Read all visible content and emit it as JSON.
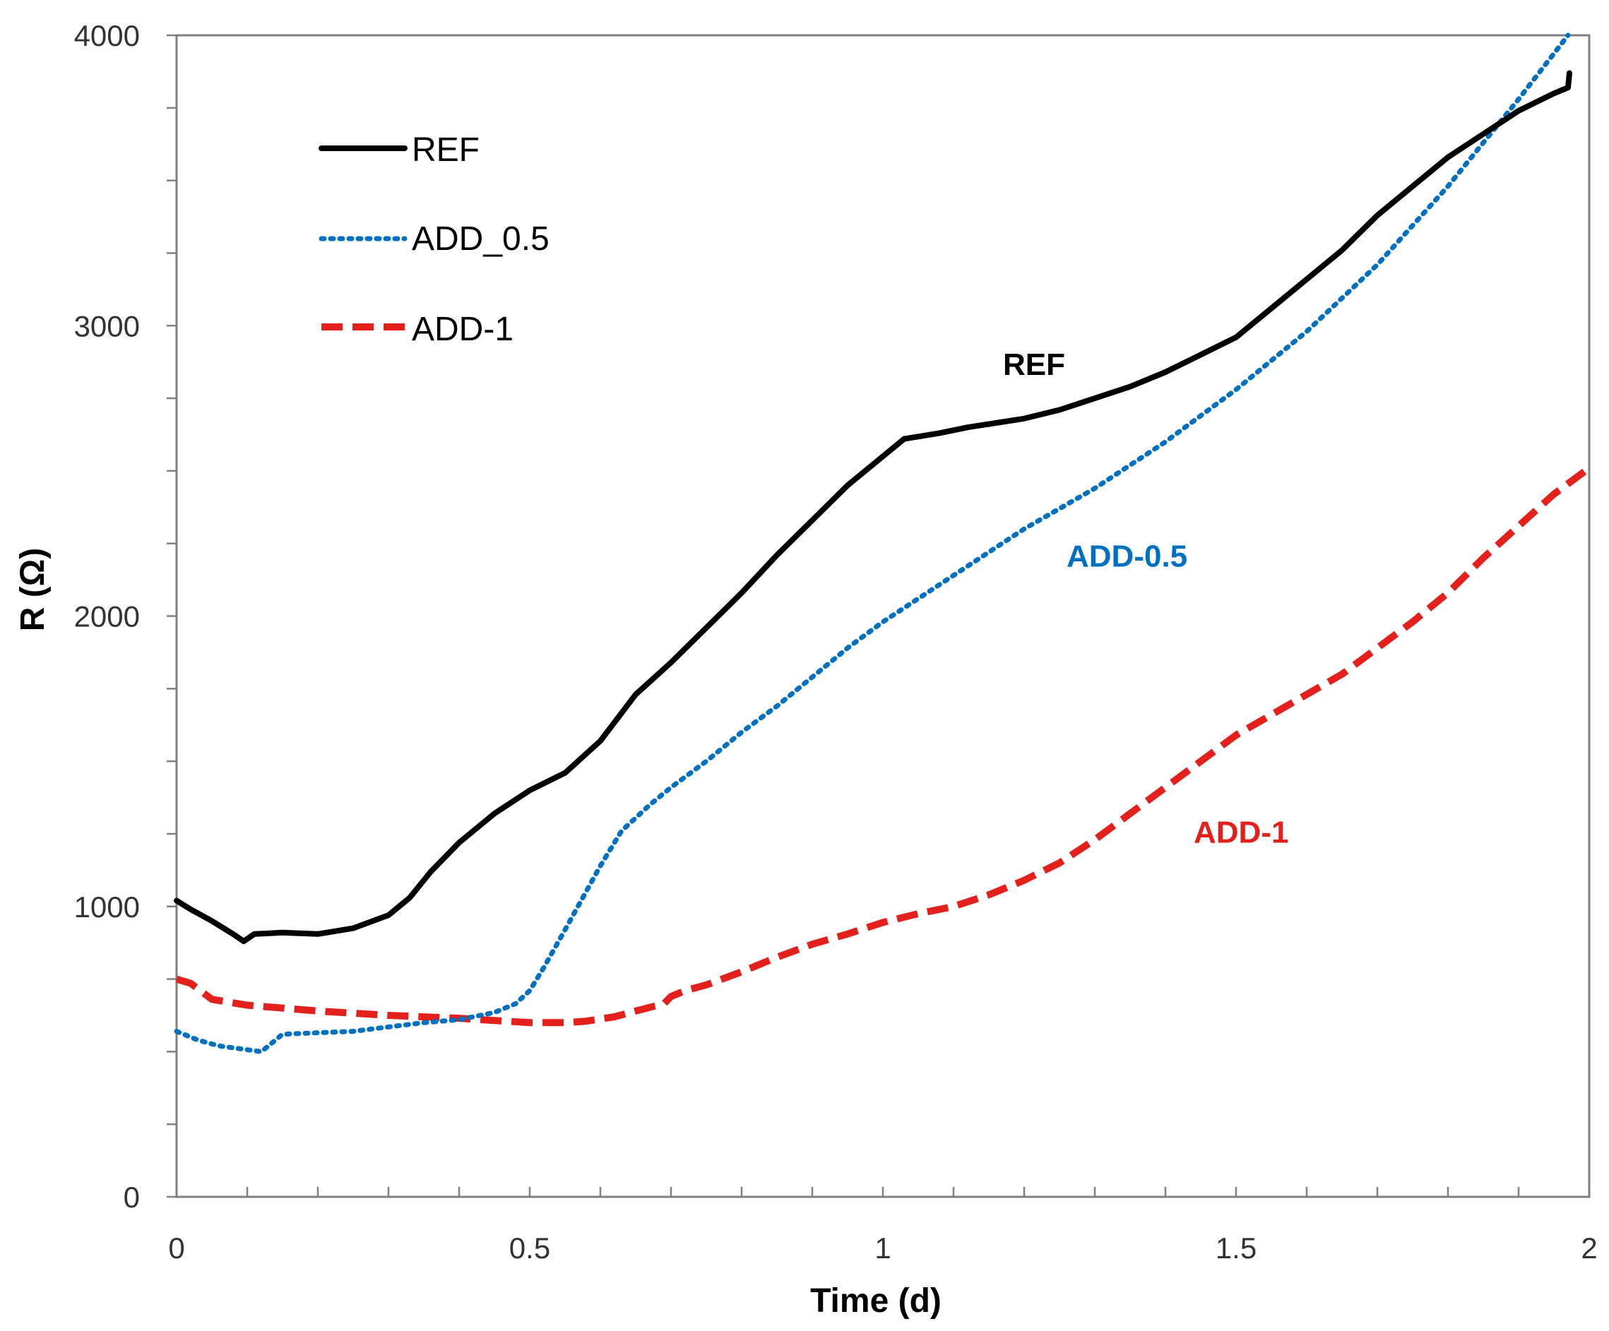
{
  "chart_data": {
    "type": "line",
    "title": "",
    "xlabel": "Time (d)",
    "ylabel": "R (Ω)",
    "xlim": [
      0,
      2
    ],
    "ylim": [
      0,
      4000
    ],
    "x_ticks": [
      {
        "value": 0,
        "label": "0"
      },
      {
        "value": 0.5,
        "label": "0.5"
      },
      {
        "value": 1,
        "label": "1"
      },
      {
        "value": 1.5,
        "label": "1.5"
      },
      {
        "value": 2,
        "label": "2"
      }
    ],
    "x_minor_step": 0.1,
    "y_ticks": [
      {
        "value": 0,
        "label": "0"
      },
      {
        "value": 1000,
        "label": "1000"
      },
      {
        "value": 2000,
        "label": "2000"
      },
      {
        "value": 3000,
        "label": "3000"
      },
      {
        "value": 4000,
        "label": "4000"
      }
    ],
    "y_minor_step": 250,
    "grid": false,
    "legend_position": "top-left",
    "series": [
      {
        "name": "REF",
        "color": "#000000",
        "style": "solid",
        "x": [
          0,
          0.02,
          0.05,
          0.08,
          0.095,
          0.11,
          0.15,
          0.2,
          0.25,
          0.3,
          0.33,
          0.36,
          0.4,
          0.45,
          0.5,
          0.55,
          0.6,
          0.65,
          0.7,
          0.75,
          0.8,
          0.85,
          0.9,
          0.95,
          1.0,
          1.03,
          1.08,
          1.12,
          1.16,
          1.2,
          1.25,
          1.3,
          1.35,
          1.4,
          1.45,
          1.5,
          1.55,
          1.6,
          1.65,
          1.7,
          1.75,
          1.8,
          1.85,
          1.9,
          1.95,
          1.97,
          1.972
        ],
        "values": [
          1020,
          990,
          950,
          905,
          880,
          905,
          910,
          905,
          925,
          970,
          1030,
          1120,
          1220,
          1320,
          1400,
          1460,
          1570,
          1730,
          1840,
          1960,
          2080,
          2210,
          2330,
          2450,
          2550,
          2610,
          2630,
          2650,
          2665,
          2680,
          2710,
          2750,
          2790,
          2840,
          2900,
          2960,
          3060,
          3160,
          3260,
          3380,
          3480,
          3580,
          3660,
          3740,
          3800,
          3820,
          3870
        ]
      },
      {
        "name": "ADD_0.5",
        "annotation": "ADD-0.5",
        "color": "#0070C0",
        "style": "dotted",
        "x": [
          0,
          0.03,
          0.06,
          0.09,
          0.12,
          0.13,
          0.15,
          0.2,
          0.25,
          0.3,
          0.35,
          0.4,
          0.45,
          0.48,
          0.5,
          0.52,
          0.55,
          0.6,
          0.63,
          0.67,
          0.7,
          0.75,
          0.8,
          0.85,
          0.9,
          0.95,
          1.0,
          1.05,
          1.1,
          1.2,
          1.3,
          1.4,
          1.5,
          1.6,
          1.7,
          1.8,
          1.9,
          1.97
        ],
        "values": [
          570,
          540,
          520,
          510,
          500,
          520,
          560,
          565,
          570,
          585,
          600,
          610,
          635,
          665,
          710,
          790,
          920,
          1140,
          1260,
          1350,
          1410,
          1500,
          1600,
          1690,
          1790,
          1890,
          1980,
          2060,
          2140,
          2300,
          2440,
          2600,
          2780,
          2980,
          3210,
          3480,
          3780,
          4000
        ]
      },
      {
        "name": "ADD-1",
        "annotation": "ADD-1",
        "color": "#E3201B",
        "style": "dashed",
        "x": [
          0,
          0.02,
          0.05,
          0.1,
          0.15,
          0.2,
          0.3,
          0.4,
          0.5,
          0.55,
          0.58,
          0.62,
          0.65,
          0.69,
          0.7,
          0.72,
          0.75,
          0.8,
          0.85,
          0.9,
          0.95,
          1.0,
          1.05,
          1.1,
          1.15,
          1.2,
          1.25,
          1.3,
          1.35,
          1.4,
          1.45,
          1.5,
          1.55,
          1.6,
          1.65,
          1.7,
          1.75,
          1.8,
          1.85,
          1.9,
          1.95,
          2.0
        ],
        "values": [
          750,
          735,
          680,
          660,
          650,
          640,
          625,
          615,
          600,
          600,
          605,
          620,
          640,
          665,
          690,
          710,
          730,
          775,
          825,
          870,
          905,
          945,
          975,
          1000,
          1040,
          1090,
          1150,
          1230,
          1320,
          1410,
          1500,
          1590,
          1660,
          1730,
          1800,
          1890,
          1980,
          2080,
          2200,
          2310,
          2420,
          2510
        ]
      }
    ],
    "annotations": [
      {
        "text": "REF",
        "x": 1.17,
        "y": 2830,
        "color": "#000000"
      },
      {
        "text": "ADD-0.5",
        "x": 1.26,
        "y": 2170,
        "color": "#0070C0"
      },
      {
        "text": "ADD-1",
        "x": 1.44,
        "y": 1220,
        "color": "#E3201B"
      }
    ]
  }
}
